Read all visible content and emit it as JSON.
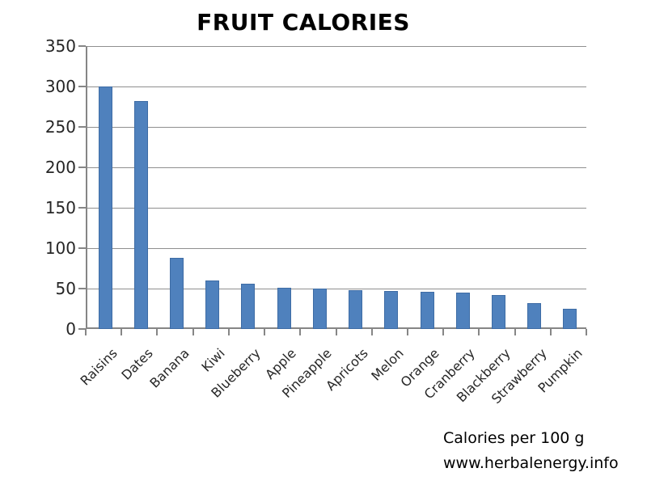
{
  "chart_data": {
    "type": "bar",
    "title": "FRUIT CALORIES",
    "categories": [
      "Raisins",
      "Dates",
      "Banana",
      "Kiwi",
      "Blueberry",
      "Apple",
      "Pineapple",
      "Apricots",
      "Melon",
      "Orange",
      "Cranberry",
      "Blackberry",
      "Strawberry",
      "Pumpkin"
    ],
    "values": [
      300,
      282,
      88,
      60,
      56,
      51,
      50,
      48,
      47,
      46,
      45,
      42,
      32,
      25
    ],
    "xlabel": "",
    "ylabel": "",
    "ylim": [
      0,
      350
    ],
    "ytick_interval": 50,
    "ytick_labels": [
      "0",
      "50",
      "100",
      "150",
      "200",
      "250",
      "300",
      "350"
    ],
    "grid": true,
    "legend_position": "none",
    "bar_color": "#4F81BD",
    "annotations": [
      "Calories per 100 g",
      "www.herbalenergy.info"
    ]
  },
  "footnote": {
    "line1": "Calories per 100 g",
    "line2": "www.herbalenergy.info"
  },
  "colors": {
    "bar_fill": "#4F81BD",
    "bar_border": "#3E6CA5",
    "gridline": "#8F8F8F",
    "axis": "#868686",
    "label_text": "#262626",
    "title_text": "#000000",
    "background": "#FFFFFF"
  }
}
